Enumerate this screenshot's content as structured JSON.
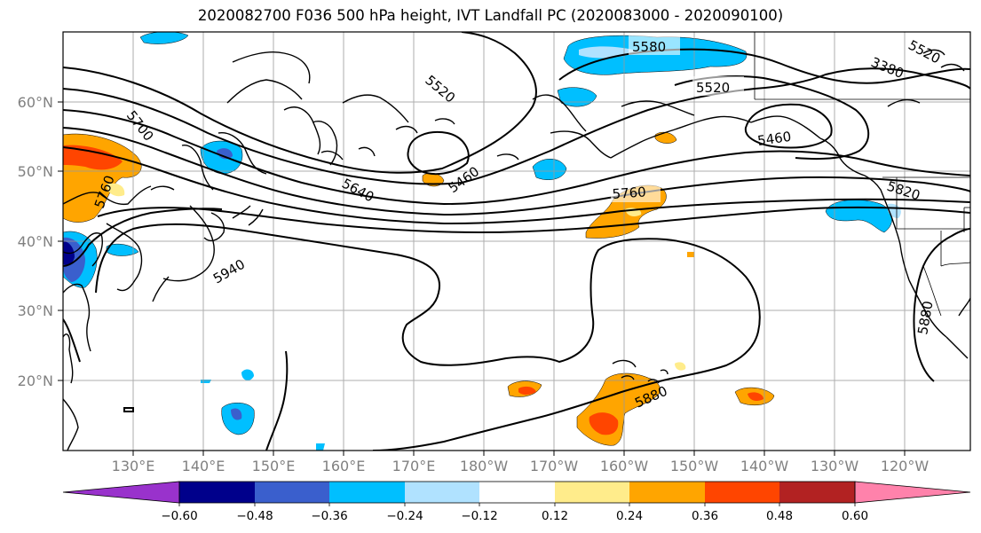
{
  "title": "2020082700 F036 500 hPa height, IVT Landfall PC (2020083000 - 2020090100)",
  "lon_labels": [
    "130°E",
    "140°E",
    "150°E",
    "160°E",
    "170°E",
    "180°W",
    "170°W",
    "160°W",
    "150°W",
    "140°W",
    "130°W",
    "120°W"
  ],
  "lat_labels": [
    "60°N",
    "50°N",
    "40°N",
    "30°N",
    "20°N"
  ],
  "contour_labels": [
    "5580",
    "5520",
    "5520",
    "5460",
    "3380",
    "5700",
    "5460",
    "5640",
    "5760",
    "5760",
    "5820",
    "5940",
    "5880",
    "5880"
  ],
  "colorbar": {
    "ticks": [
      "−0.60",
      "−0.48",
      "−0.36",
      "−0.24",
      "−0.12",
      "0.12",
      "0.24",
      "0.36",
      "0.48",
      "0.60"
    ],
    "colors": [
      "#9932cc",
      "#00008b",
      "#3a5fcd",
      "#00bfff",
      "#b0e2ff",
      "#ffffff",
      "#ffec8b",
      "#ffa500",
      "#ff4500",
      "#b22222",
      "#ff82ab"
    ]
  }
}
